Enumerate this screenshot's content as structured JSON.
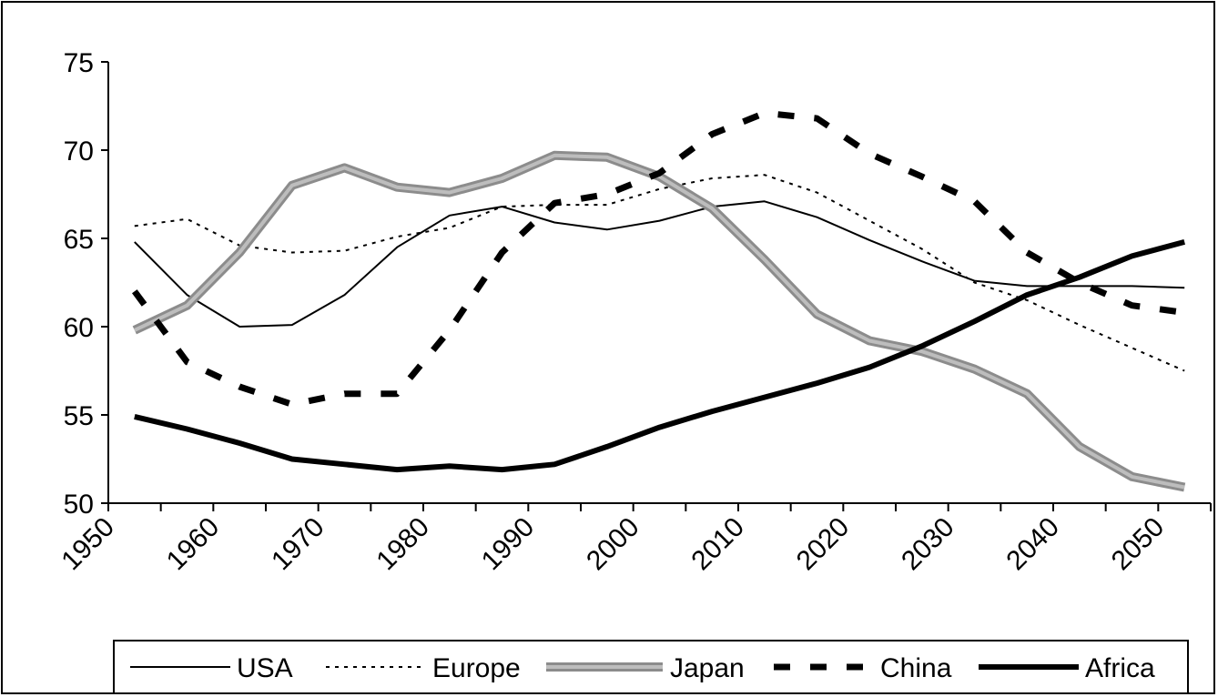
{
  "chart_data": {
    "type": "line",
    "title": "",
    "xlabel": "",
    "ylabel": "",
    "xlim": [
      1950,
      2055
    ],
    "ylim": [
      50,
      75
    ],
    "yticks": [
      50,
      55,
      60,
      65,
      70,
      75
    ],
    "xticks": [
      1950,
      1960,
      1970,
      1980,
      1990,
      2000,
      2010,
      2020,
      2030,
      2040,
      2050
    ],
    "tick_labels_y": [
      "50",
      "55",
      "60",
      "65",
      "70",
      "75"
    ],
    "tick_labels_x": [
      "1950",
      "1960",
      "1970",
      "1980",
      "1990",
      "2000",
      "2010",
      "2020",
      "2030",
      "2040",
      "2050"
    ],
    "grid": false,
    "legend_position": "bottom",
    "x": [
      1952.5,
      1957.5,
      1962.5,
      1967.5,
      1972.5,
      1977.5,
      1982.5,
      1987.5,
      1992.5,
      1997.5,
      2002.5,
      2007.5,
      2012.5,
      2017.5,
      2022.5,
      2027.5,
      2032.5,
      2037.5,
      2042.5,
      2047.5,
      2052.5
    ],
    "series": [
      {
        "name": "USA",
        "color": "#000000",
        "style": "thin-solid",
        "values": [
          64.8,
          61.8,
          60.0,
          60.1,
          61.8,
          64.5,
          66.3,
          66.8,
          65.9,
          65.5,
          66.0,
          66.8,
          67.1,
          66.2,
          64.9,
          63.7,
          62.6,
          62.3,
          62.3,
          62.3,
          62.2
        ]
      },
      {
        "name": "Europe",
        "color": "#000000",
        "style": "dotted",
        "values": [
          65.7,
          66.1,
          64.6,
          64.2,
          64.3,
          65.1,
          65.6,
          66.8,
          66.9,
          66.9,
          67.8,
          68.4,
          68.6,
          67.6,
          66.0,
          64.4,
          62.5,
          61.5,
          60.1,
          58.8,
          57.5
        ]
      },
      {
        "name": "Japan",
        "color": "#999999",
        "style": "thick-gray",
        "values": [
          59.8,
          61.2,
          64.2,
          68.0,
          69.0,
          67.9,
          67.6,
          68.4,
          69.7,
          69.6,
          68.5,
          66.7,
          63.8,
          60.7,
          59.2,
          58.6,
          57.6,
          56.2,
          53.2,
          51.5,
          50.9
        ]
      },
      {
        "name": "China",
        "color": "#000000",
        "style": "dashed",
        "values": [
          62.0,
          58.0,
          56.6,
          55.6,
          56.2,
          56.2,
          59.8,
          64.2,
          67.0,
          67.5,
          68.7,
          70.9,
          72.1,
          71.8,
          69.8,
          68.5,
          67.1,
          64.2,
          62.5,
          61.2,
          60.8
        ]
      },
      {
        "name": "Africa",
        "color": "#000000",
        "style": "thick-solid",
        "values": [
          54.9,
          54.2,
          53.4,
          52.5,
          52.2,
          51.9,
          52.1,
          51.9,
          52.2,
          53.2,
          54.3,
          55.2,
          56.0,
          56.8,
          57.7,
          58.9,
          60.3,
          61.8,
          62.8,
          64.0,
          64.8
        ]
      }
    ]
  }
}
